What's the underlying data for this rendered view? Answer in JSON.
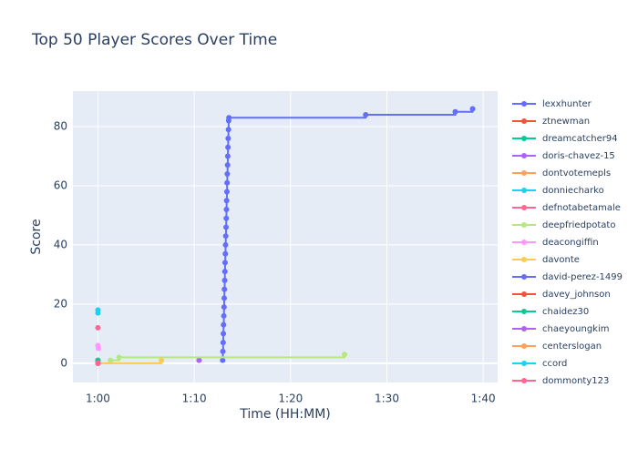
{
  "chart_data": {
    "type": "line",
    "title": "Top 50 Player Scores Over Time",
    "x_label": "Time (HH:MM)",
    "y_label": "Score",
    "line_shape": "hv",
    "grid": true,
    "xlim": [
      57.4,
      101.5
    ],
    "ylim": [
      -6.5,
      92
    ],
    "xticks": [
      {
        "value": 60,
        "label": "1:00"
      },
      {
        "value": 70,
        "label": "1:10"
      },
      {
        "value": 80,
        "label": "1:20"
      },
      {
        "value": 90,
        "label": "1:30"
      },
      {
        "value": 100,
        "label": "1:40"
      }
    ],
    "yticks": [
      0,
      20,
      40,
      60,
      80
    ],
    "series": [
      {
        "name": "lexxhunter",
        "color": "#636efa",
        "x": [
          72.95,
          72.97,
          73.0,
          73.02,
          73.04,
          73.07,
          73.09,
          73.11,
          73.13,
          73.16,
          73.18,
          73.2,
          73.23,
          73.25,
          73.27,
          73.3,
          73.32,
          73.34,
          73.36,
          73.39,
          73.41,
          73.43,
          73.46,
          73.48,
          73.5,
          73.52,
          73.55,
          73.57,
          73.6,
          87.8,
          97.1,
          98.9
        ],
        "values": [
          1,
          4,
          7,
          10,
          13,
          16,
          19,
          22,
          25,
          28,
          31,
          34,
          37,
          40,
          43,
          46,
          49,
          52,
          55,
          58,
          61,
          64,
          67,
          70,
          73,
          76,
          79,
          82,
          83,
          84,
          85,
          86
        ]
      },
      {
        "name": "ztnewman",
        "color": "#EF553B",
        "x": [
          60
        ],
        "values": [
          0
        ]
      },
      {
        "name": "dreamcatcher94",
        "color": "#00cc96",
        "x": [
          60
        ],
        "values": [
          1
        ]
      },
      {
        "name": "doris-chavez-15",
        "color": "#ab63fa",
        "x": [
          70.5
        ],
        "values": [
          1
        ]
      },
      {
        "name": "dontvotemepls",
        "color": "#FFA15A",
        "x": [
          60
        ],
        "values": [
          0
        ]
      },
      {
        "name": "donniecharko",
        "color": "#19d3f3",
        "x": [
          60
        ],
        "values": [
          18
        ]
      },
      {
        "name": "defnotabetamale",
        "color": "#FF6692",
        "x": [
          60
        ],
        "values": [
          12
        ]
      },
      {
        "name": "deepfriedpotato",
        "color": "#B6E880",
        "x": [
          60,
          61.3,
          62.2,
          85.6
        ],
        "values": [
          0,
          1,
          2,
          3
        ]
      },
      {
        "name": "deacongiffin",
        "color": "#FF97FF",
        "x": [
          60,
          60.05
        ],
        "values": [
          6,
          5
        ]
      },
      {
        "name": "davonte",
        "color": "#FECB52",
        "x": [
          60,
          66.6
        ],
        "values": [
          0,
          1
        ]
      },
      {
        "name": "david-perez-1499",
        "color": "#636efa",
        "x": [
          60
        ],
        "values": [
          0
        ]
      },
      {
        "name": "davey_johnson",
        "color": "#EF553B",
        "x": [
          60
        ],
        "values": [
          0
        ]
      },
      {
        "name": "chaidez30",
        "color": "#00cc96",
        "x": [
          60
        ],
        "values": [
          1
        ]
      },
      {
        "name": "chaeyoungkim",
        "color": "#ab63fa",
        "x": [
          60
        ],
        "values": [
          0
        ]
      },
      {
        "name": "centerslogan",
        "color": "#FFA15A",
        "x": [
          60
        ],
        "values": [
          0
        ]
      },
      {
        "name": "ccord",
        "color": "#19d3f3",
        "x": [
          60
        ],
        "values": [
          17
        ]
      },
      {
        "name": "dommonty123",
        "color": "#FF6692",
        "x": [
          60
        ],
        "values": [
          0
        ]
      }
    ]
  }
}
